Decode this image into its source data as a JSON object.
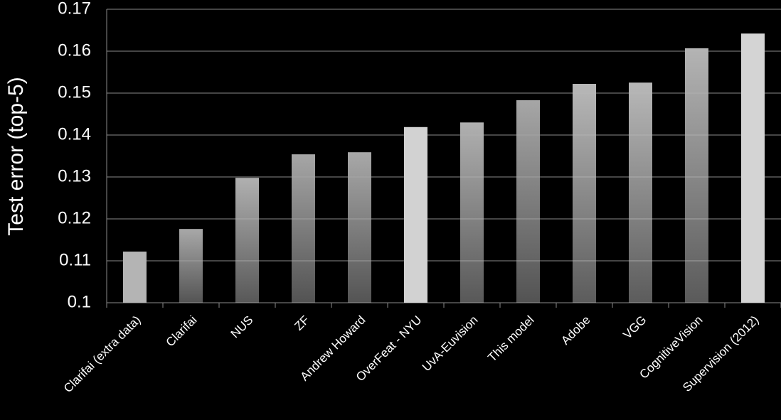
{
  "chart_data": {
    "type": "bar",
    "ylabel": "Test error (top-5)",
    "categories": [
      "Clarifai (extra data)",
      "Clarifai",
      "NUS",
      "ZF",
      "Andrew Howard",
      "OverFeat - NYU",
      "UvA-Euvision",
      "This model",
      "Adobe",
      "VGG",
      "CognitiveVision",
      "Supervision (2012)"
    ],
    "values": [
      0.1122,
      0.1176,
      0.1298,
      0.1354,
      0.1359,
      0.1419,
      0.143,
      0.1483,
      0.1522,
      0.1525,
      0.1607,
      0.1642
    ],
    "colors": [
      "#b4b4b4",
      "#a8a8a8",
      "#b0b0b0",
      "#a6a6a6",
      "#a8a8a8",
      "#d2d2d2",
      "#b0b0b0",
      "#a6a6a6",
      "#b8b8b8",
      "#b8b8b8",
      "#b4b4b4",
      "#d4d4d4"
    ],
    "ylim": [
      0.1,
      0.17
    ],
    "yticks": [
      0.1,
      0.11,
      0.12,
      0.13,
      0.14,
      0.15,
      0.16,
      0.17
    ],
    "grid": true
  }
}
